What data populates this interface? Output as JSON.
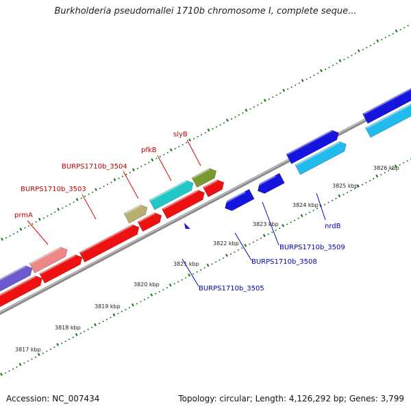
{
  "title": "Burkholderia pseudomallei 1710b chromosome I, complete seque...",
  "footer": {
    "accession": "Accession: NC_007434",
    "summary": "Topology: circular; Length: 4,126,292 bp; Genes: 3,799"
  },
  "colors": {
    "forward_gene": "#ee1111",
    "reverse_gene": "#1515dd",
    "light_blue_gene": "#22bbee",
    "cyan_gene": "#22c8c8",
    "olive_gene": "#7a9a30",
    "khaki_gene": "#b8b070",
    "pink_gene": "#ee8888",
    "purple_gene": "#6a5acd",
    "backbone": "#8a8a8a",
    "tick": "#1a7a1a"
  },
  "scale_ticks": [
    "3817 kbp",
    "3818 kbp",
    "3819 kbp",
    "3820 kbp",
    "3821 kbp",
    "3822 kbp",
    "3823 kbp",
    "3824 kbp",
    "3825 kbp",
    "3826 kbp"
  ],
  "gene_labels_forward": [
    "prmA",
    "BURPS1710b_3503",
    "BURPS1710b_3504",
    "pfkB",
    "slyB"
  ],
  "gene_labels_reverse": [
    "BURPS1710b_3505",
    "BURPS1710b_3508",
    "BURPS1710b_3509",
    "nrdB"
  ]
}
